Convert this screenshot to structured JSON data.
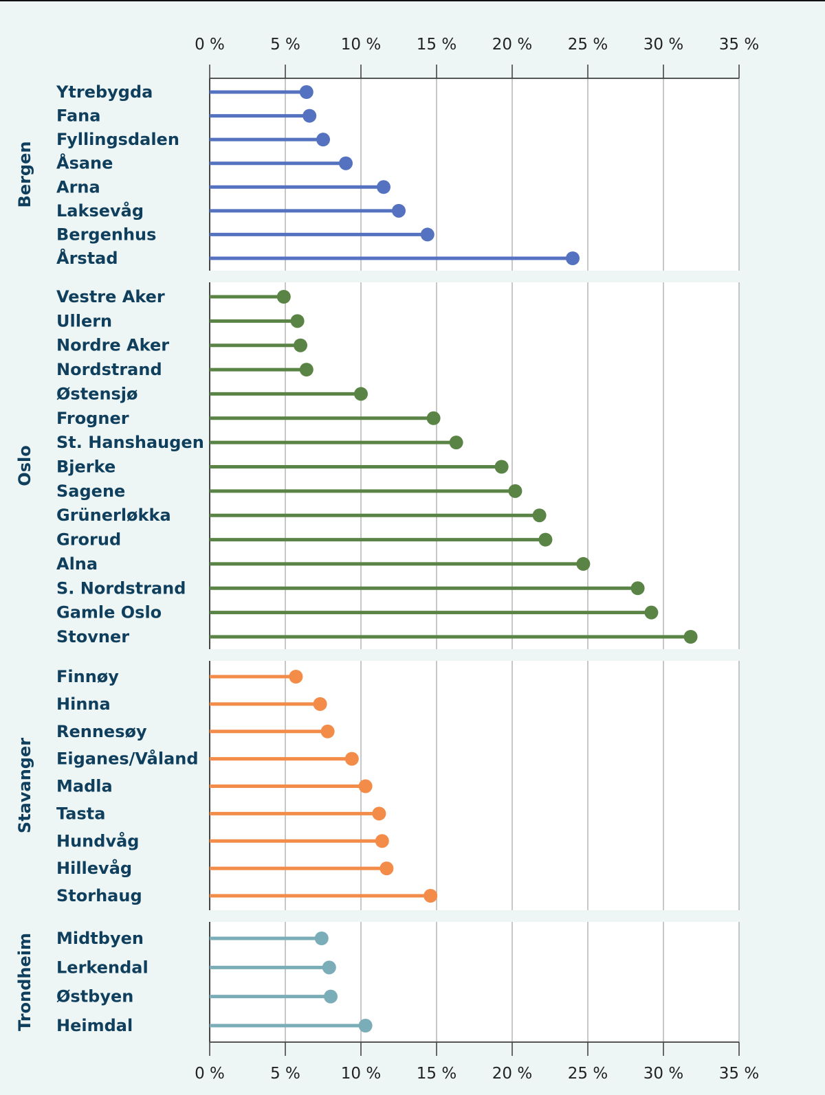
{
  "chart_data": {
    "type": "lollipop",
    "title": "",
    "xlabel": "",
    "ylabel": "",
    "xlim": [
      0,
      35
    ],
    "x_ticks": [
      0,
      5,
      10,
      15,
      20,
      25,
      30,
      35
    ],
    "x_tick_labels": [
      "0 %",
      "5 %",
      "10 %",
      "15 %",
      "20 %",
      "25 %",
      "30 %",
      "35 %"
    ],
    "grid": "vertical",
    "axis_positions": [
      "top",
      "bottom"
    ],
    "groups": [
      {
        "name": "Bergen",
        "color": "#5472bf",
        "categories": [
          "Ytrebygda",
          "Fana",
          "Fyllingsdalen",
          "Åsane",
          "Arna",
          "Laksevåg",
          "Bergenhus",
          "Årstad"
        ],
        "values": [
          6.4,
          6.6,
          7.5,
          9.0,
          11.5,
          12.5,
          14.4,
          24.0
        ]
      },
      {
        "name": "Oslo",
        "color": "#5a8445",
        "categories": [
          "Vestre Aker",
          "Ullern",
          "Nordre Aker",
          "Nordstrand",
          "Østensjø",
          "Frogner",
          "St. Hanshaugen",
          "Bjerke",
          "Sagene",
          "Grünerløkka",
          "Grorud",
          "Alna",
          "S. Nordstrand",
          "Gamle Oslo",
          "Stovner"
        ],
        "values": [
          4.9,
          5.8,
          6.0,
          6.4,
          10.0,
          14.8,
          16.3,
          19.3,
          20.2,
          21.8,
          22.2,
          24.7,
          28.3,
          29.2,
          31.8
        ]
      },
      {
        "name": "Stavanger",
        "color": "#f28c48",
        "categories": [
          "Finnøy",
          "Hinna",
          "Rennesøy",
          "Eiganes/Våland",
          "Madla",
          "Tasta",
          "Hundvåg",
          "Hillevåg",
          "Storhaug"
        ],
        "values": [
          5.7,
          7.3,
          7.8,
          9.4,
          10.3,
          11.2,
          11.4,
          11.7,
          14.6
        ]
      },
      {
        "name": "Trondheim",
        "color": "#7badb8",
        "categories": [
          "Midtbyen",
          "Lerkendal",
          "Østbyen",
          "Heimdal"
        ],
        "values": [
          7.4,
          7.9,
          8.0,
          10.3
        ]
      }
    ]
  }
}
